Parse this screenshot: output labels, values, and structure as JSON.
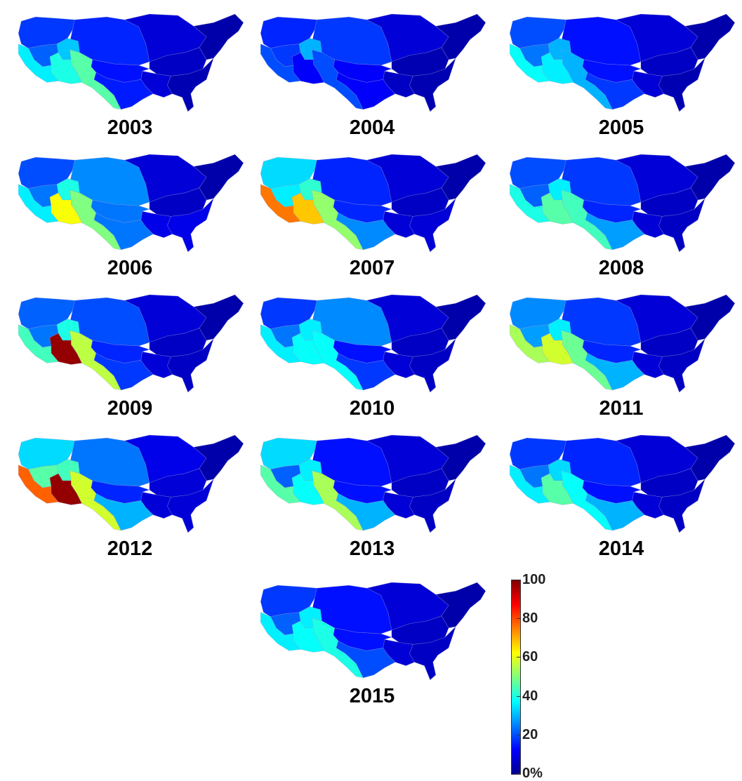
{
  "colorbar": {
    "ticks": [
      "0%",
      "20",
      "40",
      "60",
      "80",
      "100"
    ],
    "tick_values": [
      0,
      20,
      40,
      60,
      80,
      100
    ],
    "colors": [
      "#00008f",
      "#0000ff",
      "#0080ff",
      "#00ffff",
      "#80ff80",
      "#ffff00",
      "#ff8000",
      "#ff0000",
      "#800000"
    ]
  },
  "region_order": [
    "northwest",
    "upper_missouri",
    "upper_mississippi_great_lakes",
    "northeast",
    "southeast",
    "lower_mississippi",
    "arkansas_red",
    "texas_gulf",
    "rio_grande",
    "upper_colorado",
    "lower_colorado",
    "great_basin",
    "california",
    "ohio_tennessee"
  ],
  "maps": [
    {
      "year": "2003",
      "values": [
        18,
        16,
        8,
        3,
        4,
        8,
        14,
        15,
        46,
        32,
        40,
        22,
        36,
        6
      ]
    },
    {
      "year": "2004",
      "values": [
        16,
        18,
        8,
        3,
        4,
        6,
        12,
        12,
        20,
        30,
        12,
        18,
        20,
        4
      ]
    },
    {
      "year": "2005",
      "values": [
        20,
        14,
        8,
        3,
        4,
        8,
        14,
        18,
        30,
        30,
        36,
        24,
        38,
        6
      ]
    },
    {
      "year": "2006",
      "values": [
        20,
        26,
        8,
        3,
        10,
        10,
        24,
        24,
        50,
        40,
        62,
        24,
        36,
        6
      ]
    },
    {
      "year": "2007",
      "values": [
        34,
        16,
        8,
        3,
        8,
        8,
        16,
        26,
        52,
        42,
        68,
        36,
        76,
        6
      ]
    },
    {
      "year": "2008",
      "values": [
        20,
        18,
        8,
        3,
        6,
        8,
        16,
        28,
        44,
        36,
        46,
        22,
        40,
        6
      ]
    },
    {
      "year": "2009",
      "values": [
        22,
        20,
        8,
        3,
        6,
        8,
        16,
        18,
        56,
        40,
        98,
        24,
        44,
        6
      ]
    },
    {
      "year": "2010",
      "values": [
        18,
        26,
        8,
        3,
        6,
        8,
        14,
        18,
        38,
        36,
        38,
        24,
        36,
        6
      ]
    },
    {
      "year": "2011",
      "values": [
        26,
        18,
        8,
        3,
        6,
        8,
        16,
        30,
        48,
        36,
        58,
        28,
        54,
        6
      ]
    },
    {
      "year": "2012",
      "values": [
        34,
        24,
        10,
        3,
        8,
        8,
        16,
        30,
        58,
        44,
        98,
        46,
        78,
        8
      ]
    },
    {
      "year": "2013",
      "values": [
        34,
        14,
        8,
        3,
        6,
        8,
        14,
        30,
        54,
        36,
        38,
        22,
        46,
        6
      ]
    },
    {
      "year": "2014",
      "values": [
        18,
        16,
        8,
        3,
        6,
        8,
        14,
        30,
        38,
        34,
        46,
        24,
        36,
        6
      ]
    },
    {
      "year": "2015",
      "values": [
        18,
        14,
        8,
        3,
        6,
        8,
        14,
        20,
        40,
        36,
        38,
        22,
        36,
        6
      ]
    }
  ]
}
